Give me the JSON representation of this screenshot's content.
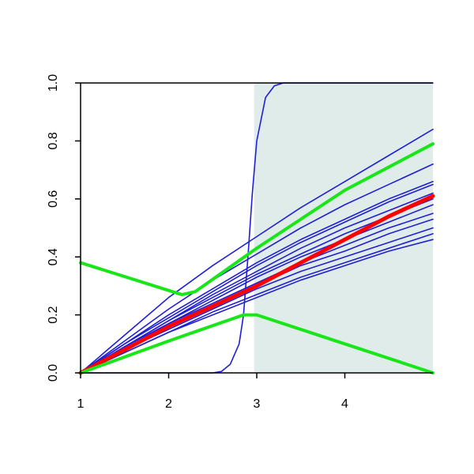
{
  "chart_data": {
    "type": "line",
    "xlim": [
      1,
      5
    ],
    "xticks": [
      1,
      2,
      3,
      4
    ],
    "ylim": [
      0,
      1
    ],
    "yticks": [
      {
        "value": 0,
        "label": "0.0"
      },
      0.2,
      0.4,
      0.6,
      0.8,
      {
        "value": 1,
        "label": "1.0"
      }
    ],
    "shaded_region": {
      "x": [
        2.97,
        5
      ],
      "color": "#e0ecea"
    },
    "series": [
      {
        "color": "#1f1fd6",
        "linewidth": 1.6,
        "x": [
          1,
          1.5,
          2,
          2.5,
          3,
          3.5,
          4,
          4.5,
          5
        ],
        "values": [
          0,
          0.13,
          0.26,
          0.37,
          0.47,
          0.57,
          0.66,
          0.75,
          0.84
        ]
      },
      {
        "color": "#1f1fd6",
        "linewidth": 1.6,
        "x": [
          1,
          1.5,
          2,
          2.5,
          3,
          3.5,
          4,
          4.5,
          5
        ],
        "values": [
          0,
          0.11,
          0.22,
          0.32,
          0.41,
          0.5,
          0.58,
          0.65,
          0.72
        ]
      },
      {
        "color": "#1f1fd6",
        "linewidth": 1.6,
        "x": [
          1,
          1.5,
          2,
          2.5,
          3,
          3.5,
          4,
          4.5,
          5
        ],
        "values": [
          0,
          0.1,
          0.2,
          0.29,
          0.38,
          0.46,
          0.53,
          0.6,
          0.66
        ]
      },
      {
        "color": "#1f1fd6",
        "linewidth": 1.6,
        "x": [
          1,
          1.5,
          2,
          2.5,
          3,
          3.5,
          4,
          4.5,
          5
        ],
        "values": [
          0,
          0.1,
          0.19,
          0.28,
          0.37,
          0.45,
          0.52,
          0.59,
          0.65
        ]
      },
      {
        "color": "#1f1fd6",
        "linewidth": 1.6,
        "x": [
          1,
          1.5,
          2,
          2.5,
          3,
          3.5,
          4,
          4.5,
          5
        ],
        "values": [
          0,
          0.09,
          0.18,
          0.27,
          0.35,
          0.43,
          0.5,
          0.56,
          0.62
        ]
      },
      {
        "color": "#1f1fd6",
        "linewidth": 1.6,
        "x": [
          1,
          1.5,
          2,
          2.5,
          3,
          3.5,
          4,
          4.5,
          5
        ],
        "values": [
          0,
          0.09,
          0.18,
          0.26,
          0.34,
          0.41,
          0.48,
          0.54,
          0.6
        ]
      },
      {
        "color": "#1f1fd6",
        "linewidth": 1.6,
        "x": [
          1,
          1.5,
          2,
          2.5,
          3,
          3.5,
          4,
          4.5,
          5
        ],
        "values": [
          0,
          0.09,
          0.17,
          0.25,
          0.33,
          0.4,
          0.46,
          0.52,
          0.58
        ]
      },
      {
        "color": "#1f1fd6",
        "linewidth": 1.6,
        "x": [
          1,
          1.5,
          2,
          2.5,
          3,
          3.5,
          4,
          4.5,
          5
        ],
        "values": [
          0,
          0.08,
          0.17,
          0.24,
          0.31,
          0.38,
          0.44,
          0.5,
          0.55
        ]
      },
      {
        "color": "#1f1fd6",
        "linewidth": 1.6,
        "x": [
          1,
          1.5,
          2,
          2.5,
          3,
          3.5,
          4,
          4.5,
          5
        ],
        "values": [
          0,
          0.08,
          0.16,
          0.23,
          0.3,
          0.37,
          0.42,
          0.48,
          0.53
        ]
      },
      {
        "color": "#1f1fd6",
        "linewidth": 1.6,
        "x": [
          1,
          1.5,
          2,
          2.5,
          3,
          3.5,
          4,
          4.5,
          5
        ],
        "values": [
          0,
          0.08,
          0.15,
          0.22,
          0.29,
          0.35,
          0.4,
          0.45,
          0.5
        ]
      },
      {
        "color": "#1f1fd6",
        "linewidth": 1.6,
        "x": [
          1,
          1.5,
          2,
          2.5,
          3,
          3.5,
          4,
          4.5,
          5
        ],
        "values": [
          0,
          0.07,
          0.14,
          0.21,
          0.27,
          0.33,
          0.38,
          0.43,
          0.48
        ]
      },
      {
        "color": "#1f1fd6",
        "linewidth": 1.6,
        "x": [
          1,
          1.5,
          2,
          2.5,
          3,
          3.5,
          4,
          4.5,
          5
        ],
        "values": [
          0,
          0.07,
          0.14,
          0.2,
          0.26,
          0.32,
          0.37,
          0.42,
          0.46
        ]
      },
      {
        "color": "#1f1fd6",
        "linewidth": 1.6,
        "x": [
          1,
          2,
          2.5,
          2.6,
          2.7,
          2.8,
          2.85,
          2.9,
          2.95,
          3,
          3.1,
          3.2,
          3.3,
          4,
          5
        ],
        "values": [
          0,
          0,
          0,
          0.005,
          0.03,
          0.1,
          0.2,
          0.4,
          0.62,
          0.8,
          0.95,
          0.99,
          1,
          1,
          1
        ]
      },
      {
        "color": "#ff0000",
        "linewidth": 5,
        "x": [
          1,
          1.5,
          2,
          2.5,
          3,
          3.5,
          4,
          4.5,
          5
        ],
        "values": [
          0,
          0.08,
          0.16,
          0.23,
          0.3,
          0.38,
          0.46,
          0.54,
          0.61
        ]
      },
      {
        "color": "#19e619",
        "linewidth": 4,
        "x": [
          1,
          2.15,
          2.3,
          3,
          3.5,
          4,
          4.5,
          5
        ],
        "values": [
          0.38,
          0.27,
          0.28,
          0.43,
          0.53,
          0.63,
          0.71,
          0.79
        ]
      },
      {
        "color": "#19e619",
        "linewidth": 4,
        "x": [
          1,
          2,
          2.85,
          3,
          4,
          5
        ],
        "values": [
          0,
          0.11,
          0.2,
          0.2,
          0.1,
          0
        ]
      }
    ]
  }
}
